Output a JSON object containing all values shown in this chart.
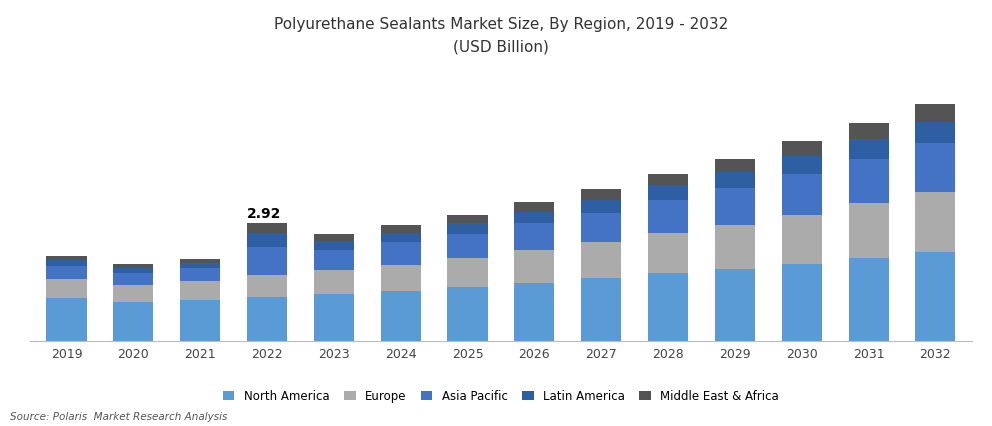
{
  "title_line1": "Polyurethane Sealants Market Size, By Region, 2019 - 2032",
  "title_line2": "(USD Billion)",
  "source": "Source: Polaris  Market Research Analysis",
  "years": [
    2019,
    2020,
    2021,
    2022,
    2023,
    2024,
    2025,
    2026,
    2027,
    2028,
    2029,
    2030,
    2031,
    2032
  ],
  "annotation_year": 2022,
  "annotation_text": "2.92",
  "regions": [
    "North America",
    "Europe",
    "Asia Pacific",
    "Latin America",
    "Middle East & Africa"
  ],
  "colors": [
    "#5B9BD5",
    "#ABABAB",
    "#4472C4",
    "#2E5FA3",
    "#545454"
  ],
  "data": {
    "North America": [
      1.05,
      0.95,
      1.0,
      1.08,
      1.15,
      1.23,
      1.33,
      1.44,
      1.55,
      1.68,
      1.78,
      1.9,
      2.05,
      2.2
    ],
    "Europe": [
      0.48,
      0.43,
      0.47,
      0.55,
      0.6,
      0.65,
      0.72,
      0.8,
      0.88,
      0.98,
      1.08,
      1.22,
      1.35,
      1.48
    ],
    "Asia Pacific": [
      0.33,
      0.3,
      0.32,
      0.7,
      0.5,
      0.55,
      0.6,
      0.66,
      0.74,
      0.82,
      0.92,
      1.0,
      1.1,
      1.2
    ],
    "Latin America": [
      0.13,
      0.12,
      0.13,
      0.34,
      0.21,
      0.23,
      0.26,
      0.29,
      0.32,
      0.36,
      0.4,
      0.45,
      0.49,
      0.54
    ],
    "Middle East & Africa": [
      0.11,
      0.1,
      0.11,
      0.25,
      0.17,
      0.19,
      0.21,
      0.24,
      0.26,
      0.29,
      0.32,
      0.36,
      0.4,
      0.44
    ]
  },
  "ylim": [
    0,
    3.0
  ],
  "bar_width": 0.6,
  "figsize": [
    9.92,
    4.26
  ],
  "dpi": 100
}
